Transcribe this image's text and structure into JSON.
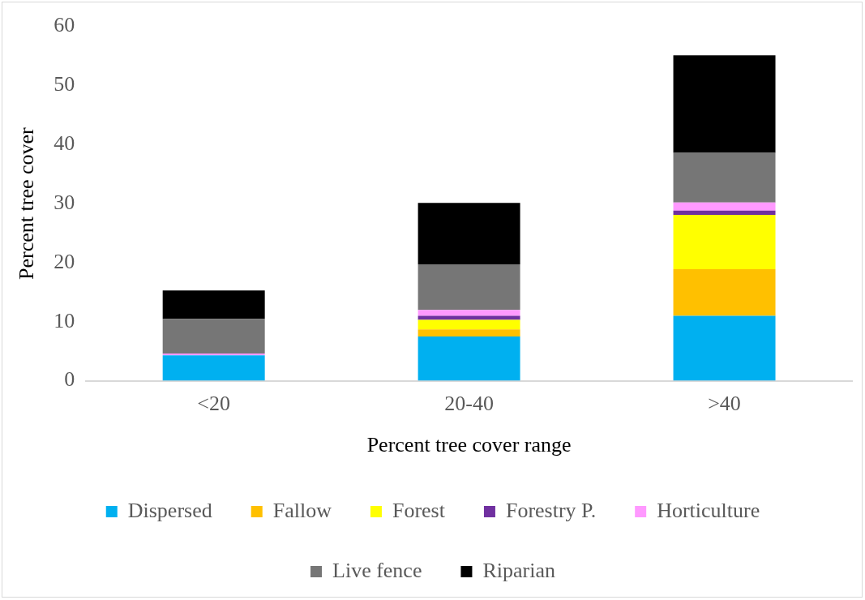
{
  "chart_data": {
    "type": "bar",
    "stacked": true,
    "xlabel": "Percent tree cover range",
    "ylabel": "Percent tree cover",
    "categories": [
      "<20",
      "20-40",
      ">40"
    ],
    "series": [
      {
        "name": "Dispersed",
        "color": "#00b0f0",
        "values": [
          4.3,
          7.5,
          11.0
        ]
      },
      {
        "name": "Fallow",
        "color": "#ffc000",
        "values": [
          0,
          1.2,
          7.9
        ]
      },
      {
        "name": "Forest",
        "color": "#ffff00",
        "values": [
          0,
          1.6,
          9.2
        ]
      },
      {
        "name": "Forestry P.",
        "color": "#7030a0",
        "values": [
          0,
          0.7,
          0.7
        ]
      },
      {
        "name": "Horticulture",
        "color": "#ff99ff",
        "values": [
          0.3,
          1.0,
          1.4
        ]
      },
      {
        "name": "Live fence",
        "color": "#767676",
        "values": [
          5.9,
          7.7,
          8.4
        ]
      },
      {
        "name": "Riparian",
        "color": "#000000",
        "values": [
          4.8,
          10.4,
          16.5
        ]
      }
    ],
    "ylim": [
      0,
      60
    ],
    "yticks": [
      0,
      10,
      20,
      30,
      40,
      50,
      60
    ],
    "grid": false,
    "legend": "bottom"
  }
}
